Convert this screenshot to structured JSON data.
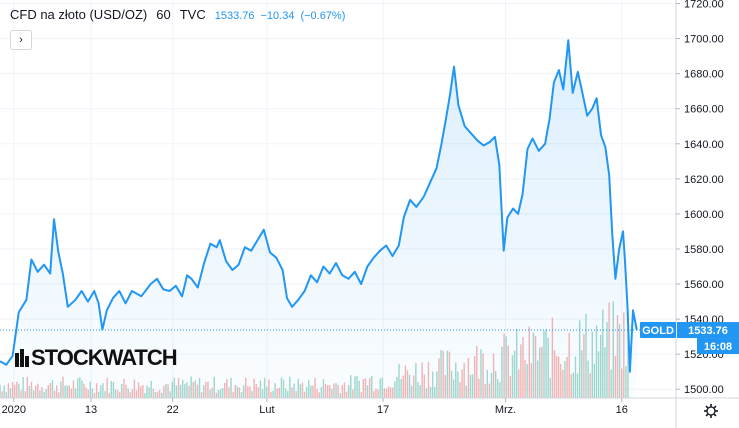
{
  "header": {
    "symbol": "CFD na złoto (USD/OZ)",
    "interval": "60",
    "source": "TVC",
    "last": "1533.76",
    "change": "−10.34",
    "change_pct": "(−0.67%)"
  },
  "toggle_label": "›",
  "watermark": "STOCKWATCH",
  "price_badge": {
    "name": "GOLD",
    "value": "1533.76",
    "countdown": "16:08"
  },
  "colors": {
    "line": "#2196f3",
    "fill": "#e6f1fc",
    "vol_up": "#8fd1c2",
    "vol_down": "#f4a6a6",
    "last_line": "#2196f3"
  },
  "gear_icon": "gear-icon",
  "chart_data": {
    "type": "area",
    "y_ticks": [
      1500,
      1520,
      1540,
      1560,
      1580,
      1600,
      1620,
      1640,
      1660,
      1680,
      1700,
      1720
    ],
    "y_tick_labels": [
      "1500.00",
      "1520.00",
      "1540.00",
      "1560.00",
      "1580.00",
      "1600.00",
      "1620.00",
      "1640.00",
      "1660.00",
      "1680.00",
      "1700.00",
      "1720.00"
    ],
    "ylim": [
      1495,
      1722
    ],
    "xlim": [
      0,
      100
    ],
    "x_ticks": [
      {
        "pos": 2.2,
        "label": "2020"
      },
      {
        "pos": 14.5,
        "label": "13"
      },
      {
        "pos": 27.5,
        "label": "22"
      },
      {
        "pos": 42.5,
        "label": "Lut"
      },
      {
        "pos": 61.0,
        "label": "17"
      },
      {
        "pos": 80.5,
        "label": "Mrz."
      },
      {
        "pos": 99.0,
        "label": "16"
      }
    ],
    "last_value": 1533.76,
    "series": [
      {
        "x": 0,
        "y": 1516
      },
      {
        "x": 1.0,
        "y": 1514
      },
      {
        "x": 2.0,
        "y": 1519
      },
      {
        "x": 3.0,
        "y": 1544
      },
      {
        "x": 4.2,
        "y": 1551
      },
      {
        "x": 5.0,
        "y": 1574
      },
      {
        "x": 6.0,
        "y": 1567
      },
      {
        "x": 7.0,
        "y": 1571
      },
      {
        "x": 8.0,
        "y": 1566
      },
      {
        "x": 8.6,
        "y": 1597
      },
      {
        "x": 9.3,
        "y": 1578
      },
      {
        "x": 10.0,
        "y": 1566
      },
      {
        "x": 10.8,
        "y": 1547
      },
      {
        "x": 12.0,
        "y": 1551
      },
      {
        "x": 13.0,
        "y": 1556
      },
      {
        "x": 14.0,
        "y": 1550
      },
      {
        "x": 15.0,
        "y": 1556
      },
      {
        "x": 15.7,
        "y": 1549
      },
      {
        "x": 16.3,
        "y": 1534
      },
      {
        "x": 17.0,
        "y": 1545
      },
      {
        "x": 18.0,
        "y": 1552
      },
      {
        "x": 19.0,
        "y": 1556
      },
      {
        "x": 20.0,
        "y": 1549
      },
      {
        "x": 21.0,
        "y": 1556
      },
      {
        "x": 22.5,
        "y": 1553
      },
      {
        "x": 24.0,
        "y": 1560
      },
      {
        "x": 25.0,
        "y": 1563
      },
      {
        "x": 26.0,
        "y": 1557
      },
      {
        "x": 27.0,
        "y": 1556
      },
      {
        "x": 28.0,
        "y": 1559
      },
      {
        "x": 29.0,
        "y": 1553
      },
      {
        "x": 29.8,
        "y": 1565
      },
      {
        "x": 30.5,
        "y": 1563
      },
      {
        "x": 31.5,
        "y": 1558
      },
      {
        "x": 32.5,
        "y": 1572
      },
      {
        "x": 33.5,
        "y": 1583
      },
      {
        "x": 34.5,
        "y": 1581
      },
      {
        "x": 35.0,
        "y": 1585
      },
      {
        "x": 36.0,
        "y": 1573
      },
      {
        "x": 37.0,
        "y": 1568
      },
      {
        "x": 38.0,
        "y": 1571
      },
      {
        "x": 39.0,
        "y": 1581
      },
      {
        "x": 40.0,
        "y": 1579
      },
      {
        "x": 41.0,
        "y": 1585
      },
      {
        "x": 42.0,
        "y": 1591
      },
      {
        "x": 43.0,
        "y": 1578
      },
      {
        "x": 44.0,
        "y": 1575
      },
      {
        "x": 45.0,
        "y": 1568
      },
      {
        "x": 45.7,
        "y": 1552
      },
      {
        "x": 46.5,
        "y": 1547
      },
      {
        "x": 47.5,
        "y": 1551
      },
      {
        "x": 48.5,
        "y": 1556
      },
      {
        "x": 49.5,
        "y": 1565
      },
      {
        "x": 50.5,
        "y": 1561
      },
      {
        "x": 51.5,
        "y": 1570
      },
      {
        "x": 52.5,
        "y": 1566
      },
      {
        "x": 53.5,
        "y": 1572
      },
      {
        "x": 54.5,
        "y": 1565
      },
      {
        "x": 55.5,
        "y": 1563
      },
      {
        "x": 56.5,
        "y": 1567
      },
      {
        "x": 57.5,
        "y": 1560
      },
      {
        "x": 58.5,
        "y": 1570
      },
      {
        "x": 59.5,
        "y": 1575
      },
      {
        "x": 60.5,
        "y": 1579
      },
      {
        "x": 61.5,
        "y": 1582
      },
      {
        "x": 62.5,
        "y": 1576
      },
      {
        "x": 63.5,
        "y": 1582
      },
      {
        "x": 64.3,
        "y": 1598
      },
      {
        "x": 65.3,
        "y": 1608
      },
      {
        "x": 66.3,
        "y": 1604
      },
      {
        "x": 67.5,
        "y": 1610
      },
      {
        "x": 68.5,
        "y": 1618
      },
      {
        "x": 69.5,
        "y": 1626
      },
      {
        "x": 70.3,
        "y": 1640
      },
      {
        "x": 71.0,
        "y": 1654
      },
      {
        "x": 71.7,
        "y": 1669
      },
      {
        "x": 72.3,
        "y": 1684
      },
      {
        "x": 73.0,
        "y": 1662
      },
      {
        "x": 74.0,
        "y": 1650
      },
      {
        "x": 75.0,
        "y": 1646
      },
      {
        "x": 76.0,
        "y": 1642
      },
      {
        "x": 77.0,
        "y": 1639
      },
      {
        "x": 78.0,
        "y": 1641
      },
      {
        "x": 78.8,
        "y": 1644
      },
      {
        "x": 79.5,
        "y": 1628
      },
      {
        "x": 80.2,
        "y": 1579
      },
      {
        "x": 80.8,
        "y": 1598
      },
      {
        "x": 81.7,
        "y": 1603
      },
      {
        "x": 82.5,
        "y": 1600
      },
      {
        "x": 83.2,
        "y": 1611
      },
      {
        "x": 84.0,
        "y": 1637
      },
      {
        "x": 84.8,
        "y": 1643
      },
      {
        "x": 85.8,
        "y": 1636
      },
      {
        "x": 86.8,
        "y": 1640
      },
      {
        "x": 87.5,
        "y": 1654
      },
      {
        "x": 88.2,
        "y": 1675
      },
      {
        "x": 89.0,
        "y": 1682
      },
      {
        "x": 89.7,
        "y": 1671
      },
      {
        "x": 90.5,
        "y": 1699
      },
      {
        "x": 91.2,
        "y": 1669
      },
      {
        "x": 92.0,
        "y": 1681
      },
      {
        "x": 92.8,
        "y": 1668
      },
      {
        "x": 93.5,
        "y": 1656
      },
      {
        "x": 94.3,
        "y": 1660
      },
      {
        "x": 95.0,
        "y": 1666
      },
      {
        "x": 95.7,
        "y": 1645
      },
      {
        "x": 96.4,
        "y": 1638
      },
      {
        "x": 97.0,
        "y": 1622
      },
      {
        "x": 97.5,
        "y": 1588
      },
      {
        "x": 98.0,
        "y": 1563
      },
      {
        "x": 98.6,
        "y": 1580
      },
      {
        "x": 99.2,
        "y": 1590
      },
      {
        "x": 99.5,
        "y": 1574
      },
      {
        "x": 99.9,
        "y": 1548
      },
      {
        "x": 100.3,
        "y": 1510
      },
      {
        "x": 100.8,
        "y": 1545
      },
      {
        "x": 101.4,
        "y": 1533.76
      }
    ],
    "volume": {
      "approx_bar_count": 300,
      "max_share_of_panel": 0.32
    }
  }
}
